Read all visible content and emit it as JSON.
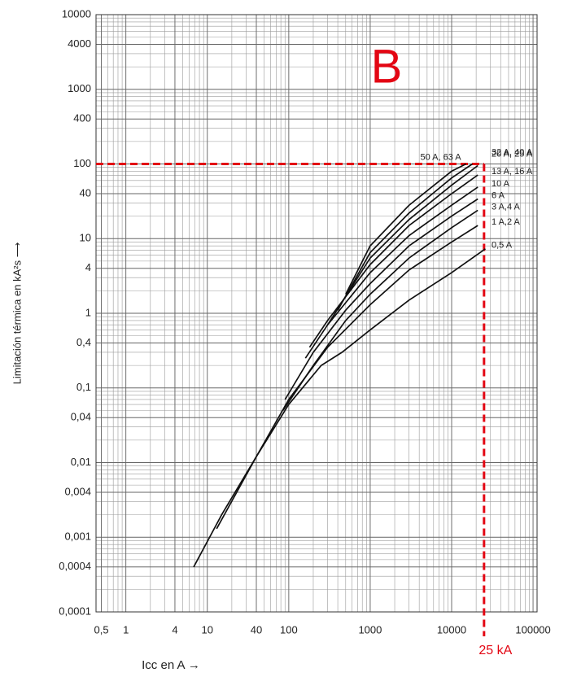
{
  "chart_data": {
    "type": "line",
    "x_log": true,
    "y_log": true,
    "grid": true,
    "xlabel": "Icc en A →",
    "ylabel": "Limitación térmica en kA²s ⟶",
    "xlim": [
      0.43,
      112000
    ],
    "ylim": [
      0.0001,
      10000
    ],
    "xticks": [
      {
        "value": 0.5,
        "label": "0,5"
      },
      1,
      4,
      10,
      40,
      100,
      1000,
      10000,
      100000
    ],
    "yticks": [
      10000,
      4000,
      1000,
      400,
      100,
      40,
      10,
      4,
      1,
      {
        "value": 0.4,
        "label": "0,4"
      },
      {
        "value": 0.1,
        "label": "0,1"
      },
      {
        "value": 0.04,
        "label": "0,04"
      },
      {
        "value": 0.01,
        "label": "0,01"
      },
      {
        "value": 0.004,
        "label": "0,004"
      },
      {
        "value": 0.001,
        "label": "0,001"
      },
      {
        "value": 0.0004,
        "label": "0,0004"
      },
      {
        "value": 0.0001,
        "label": "0,0001"
      }
    ],
    "series": [
      {
        "name": "0,5 A",
        "color": "#111111",
        "x": [
          6.8,
          15,
          40,
          100,
          250,
          450,
          1000,
          3000,
          10000,
          26000
        ],
        "values": [
          0.0004,
          0.002,
          0.012,
          0.06,
          0.2,
          0.3,
          0.6,
          1.5,
          3.5,
          7.3
        ]
      },
      {
        "name": "1 A,2 A",
        "color": "#111111",
        "x": [
          13,
          40,
          100,
          300,
          1000,
          3000,
          10000,
          21000
        ],
        "values": [
          0.0013,
          0.012,
          0.07,
          0.35,
          1.3,
          3.8,
          9,
          15
        ]
      },
      {
        "name": "3 A,4 A",
        "color": "#111111",
        "x": [
          85,
          200,
          500,
          1000,
          3000,
          10000,
          21000
        ],
        "values": [
          0.05,
          0.2,
          0.8,
          1.8,
          5.5,
          14,
          24
        ]
      },
      {
        "name": "6 A",
        "color": "#111111",
        "x": [
          90,
          200,
          500,
          1000,
          3000,
          10000,
          21000
        ],
        "values": [
          0.07,
          0.3,
          1.1,
          2.5,
          8,
          20,
          34
        ]
      },
      {
        "name": "10 A",
        "color": "#111111",
        "x": [
          160,
          300,
          1000,
          3000,
          10000,
          21000
        ],
        "values": [
          0.25,
          0.7,
          3.5,
          11,
          28,
          49
        ]
      },
      {
        "name": "13 A, 16 A",
        "color": "#111111",
        "x": [
          180,
          300,
          1000,
          3000,
          10000,
          21000
        ],
        "values": [
          0.35,
          0.8,
          4.5,
          15,
          40,
          71
        ]
      },
      {
        "name": "20 A, 25 A",
        "color": "#111111",
        "x": [
          300,
          1000,
          3000,
          10000,
          21000
        ],
        "values": [
          0.7,
          5.5,
          18,
          52,
          95
        ]
      },
      {
        "name": "32 A, 40 A",
        "color": "#111111",
        "x": [
          400,
          1000,
          3000,
          10000,
          18000
        ],
        "values": [
          1.1,
          6.5,
          22,
          65,
          100
        ]
      },
      {
        "name": "50 A, 63 A",
        "color": "#111111",
        "x": [
          500,
          1000,
          3000,
          10000,
          15000
        ],
        "values": [
          1.8,
          8,
          28,
          80,
          100
        ]
      }
    ],
    "annotation": {
      "text": "B",
      "color": "#e30613"
    },
    "reference": {
      "x": 25000,
      "y": 100,
      "label": "25 kA",
      "color": "#e30613"
    }
  }
}
